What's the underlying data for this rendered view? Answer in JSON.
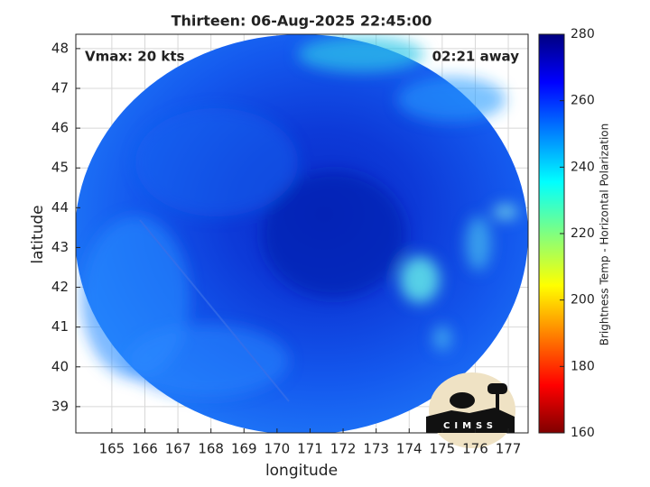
{
  "chart_data": {
    "type": "map",
    "title": "Thirteen: 06-Aug-2025 22:45:00",
    "annotations": [
      "Vmax: 20 kts",
      "02:21 away"
    ],
    "xlabel": "longitude",
    "ylabel": "latitude",
    "xlim": [
      163.91,
      177.6
    ],
    "ylim": [
      38.34,
      48.36
    ],
    "xticks": [
      165,
      166,
      167,
      168,
      169,
      170,
      171,
      172,
      173,
      174,
      175,
      176,
      177
    ],
    "yticks": [
      39,
      40,
      41,
      42,
      43,
      44,
      45,
      46,
      47,
      48
    ],
    "grid": true,
    "colorbar": {
      "label": "Brightness Temp - Horizontal Polarization",
      "lim": [
        160,
        280
      ],
      "ticks": [
        160,
        180,
        200,
        220,
        240,
        260,
        280
      ]
    },
    "logo": "CIMSS"
  }
}
